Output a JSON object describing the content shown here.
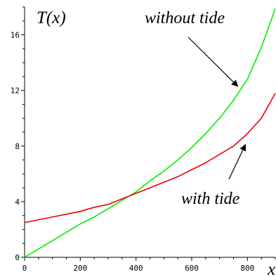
{
  "chart_data": {
    "type": "line",
    "ylabel": "T(x)",
    "xlabel": "x",
    "xlim": [
      0,
      900
    ],
    "ylim": [
      0,
      18
    ],
    "x_ticks": [
      0,
      200,
      400,
      600,
      800
    ],
    "y_ticks": [
      0,
      4,
      8,
      12,
      16
    ],
    "grid": false,
    "series": [
      {
        "name": "without tide",
        "color": "#00ee00",
        "x": [
          0,
          50,
          100,
          150,
          200,
          250,
          300,
          350,
          400,
          450,
          500,
          550,
          600,
          650,
          700,
          750,
          800,
          850,
          900
        ],
        "values": [
          0.0,
          0.6,
          1.2,
          1.8,
          2.4,
          2.9,
          3.5,
          4.1,
          4.7,
          5.5,
          6.2,
          7.0,
          7.9,
          8.9,
          10.0,
          11.3,
          12.8,
          15.1,
          17.9
        ]
      },
      {
        "name": "with tide",
        "color": "#ee0000",
        "x": [
          0,
          50,
          100,
          150,
          200,
          250,
          300,
          350,
          400,
          450,
          500,
          550,
          600,
          650,
          700,
          750,
          800,
          850,
          900
        ],
        "values": [
          2.5,
          2.7,
          2.9,
          3.1,
          3.3,
          3.6,
          3.8,
          4.2,
          4.6,
          5.0,
          5.4,
          5.8,
          6.3,
          6.8,
          7.4,
          8.0,
          8.9,
          10.0,
          11.8
        ]
      }
    ],
    "annotations": [
      {
        "text": "without tide",
        "target_series": "without tide"
      },
      {
        "text": "with tide",
        "target_series": "with tide"
      }
    ]
  }
}
